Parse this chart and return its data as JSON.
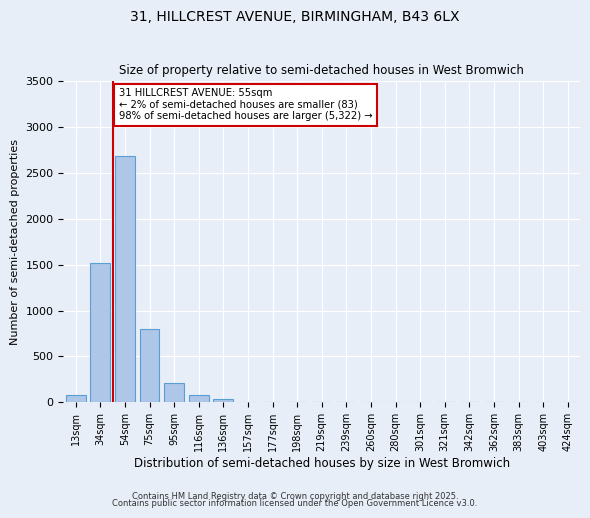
{
  "title": "31, HILLCREST AVENUE, BIRMINGHAM, B43 6LX",
  "subtitle": "Size of property relative to semi-detached houses in West Bromwich",
  "xlabel": "Distribution of semi-detached houses by size in West Bromwich",
  "ylabel": "Number of semi-detached properties",
  "bar_color": "#aec6e8",
  "bar_edge_color": "#5a9fd4",
  "annotation_box_color": "#cc0000",
  "vline_color": "#cc0000",
  "background_color": "#e8eef8",
  "bins": [
    "13sqm",
    "34sqm",
    "54sqm",
    "75sqm",
    "95sqm",
    "116sqm",
    "136sqm",
    "157sqm",
    "177sqm",
    "198sqm",
    "219sqm",
    "239sqm",
    "260sqm",
    "280sqm",
    "301sqm",
    "321sqm",
    "342sqm",
    "362sqm",
    "383sqm",
    "403sqm",
    "424sqm"
  ],
  "values": [
    75,
    1520,
    2680,
    800,
    215,
    85,
    40,
    0,
    0,
    0,
    0,
    0,
    0,
    0,
    0,
    0,
    0,
    0,
    0,
    0,
    0
  ],
  "ylim": [
    0,
    3500
  ],
  "yticks": [
    0,
    500,
    1000,
    1500,
    2000,
    2500,
    3000,
    3500
  ],
  "property_size": "55sqm",
  "property_name": "31 HILLCREST AVENUE",
  "pct_smaller": 2,
  "count_smaller": 83,
  "pct_larger": 98,
  "count_larger": 5322,
  "vline_bin_index": 2,
  "footer1": "Contains HM Land Registry data © Crown copyright and database right 2025.",
  "footer2": "Contains public sector information licensed under the Open Government Licence v3.0."
}
